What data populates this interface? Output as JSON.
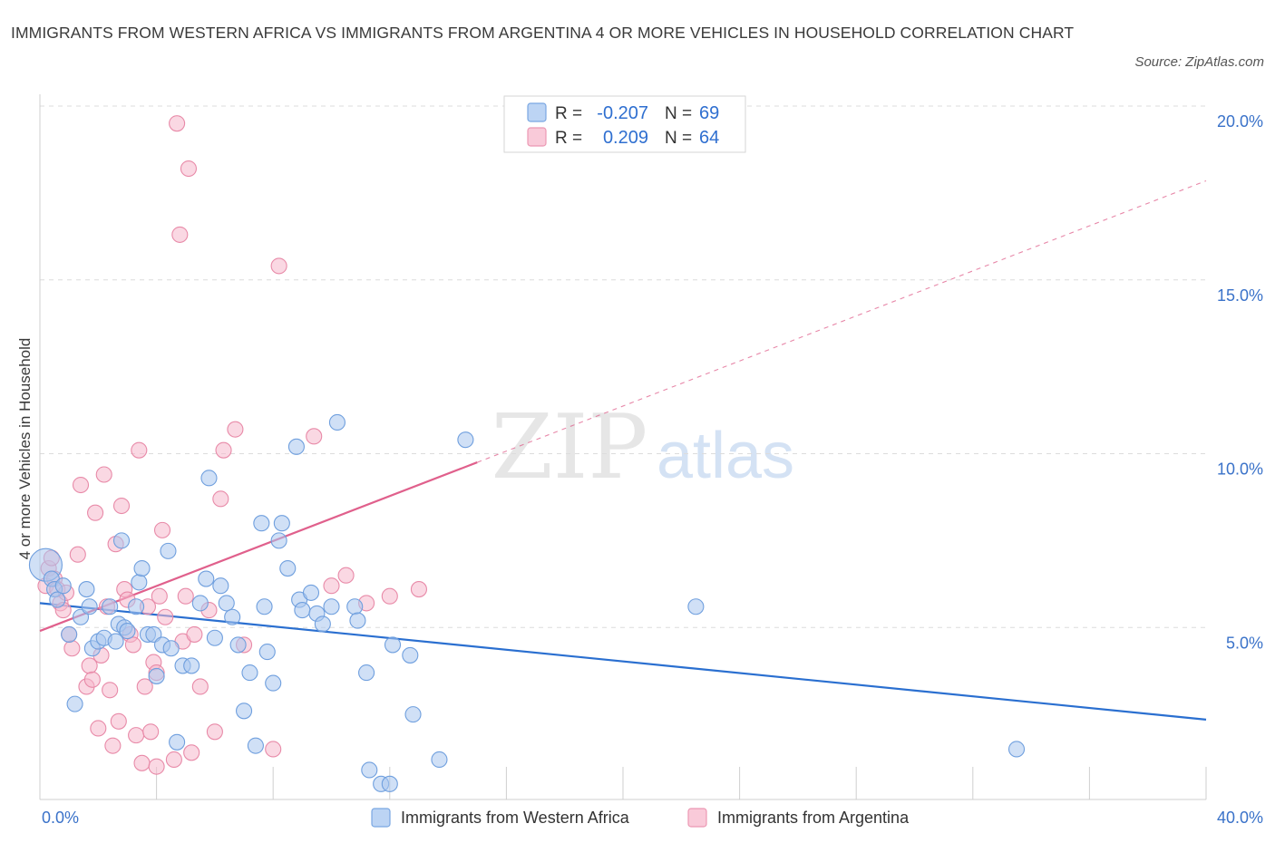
{
  "title": "IMMIGRANTS FROM WESTERN AFRICA VS IMMIGRANTS FROM ARGENTINA 4 OR MORE VEHICLES IN HOUSEHOLD CORRELATION CHART",
  "source": "Source: ZipAtlas.com",
  "watermark": {
    "zip": "ZIP",
    "atlas": "atlas"
  },
  "colors": {
    "blue_fill": "#a9c6ee",
    "blue_stroke": "#6f9fde",
    "blue_line": "#2a6fd0",
    "pink_fill": "#f5b8cc",
    "pink_stroke": "#e88aa8",
    "pink_line": "#e0608c",
    "tick_text": "#3a72c9",
    "grid": "#dcdcdc"
  },
  "legend": {
    "rows": [
      {
        "r_label": "R =",
        "r_value": "-0.207",
        "n_label": "N =",
        "n_value": "69"
      },
      {
        "r_label": "R =",
        "r_value": "0.209",
        "n_label": "N =",
        "n_value": "64"
      }
    ]
  },
  "chart_data": {
    "type": "scatter",
    "title": "IMMIGRANTS FROM WESTERN AFRICA VS IMMIGRANTS FROM ARGENTINA 4 OR MORE VEHICLES IN HOUSEHOLD CORRELATION CHART",
    "xlabel": "",
    "ylabel": "4 or more Vehicles in Household",
    "xlim": [
      0,
      40
    ],
    "ylim": [
      0,
      20
    ],
    "x_tick_labels": [
      "0.0%",
      "40.0%"
    ],
    "y_ticks": [
      5,
      10,
      15,
      20
    ],
    "y_tick_labels": [
      "5.0%",
      "10.0%",
      "15.0%",
      "20.0%"
    ],
    "grid": true,
    "legend_position": "top-center",
    "series": [
      {
        "name": "Immigrants from Western Africa",
        "color": "#a9c6ee",
        "trend": {
          "x0": 0,
          "y0": 5.7,
          "x1": 40,
          "y1": 2.35
        },
        "points": [
          [
            0.2,
            6.8
          ],
          [
            0.4,
            6.4
          ],
          [
            0.5,
            6.1
          ],
          [
            0.6,
            5.8
          ],
          [
            0.8,
            6.2
          ],
          [
            1.0,
            4.8
          ],
          [
            1.2,
            2.8
          ],
          [
            1.4,
            5.3
          ],
          [
            1.6,
            6.1
          ],
          [
            1.7,
            5.6
          ],
          [
            1.8,
            4.4
          ],
          [
            2.0,
            4.6
          ],
          [
            2.2,
            4.7
          ],
          [
            2.4,
            5.6
          ],
          [
            2.6,
            4.6
          ],
          [
            2.7,
            5.1
          ],
          [
            2.8,
            7.5
          ],
          [
            2.9,
            5.0
          ],
          [
            3.0,
            4.9
          ],
          [
            3.3,
            5.6
          ],
          [
            3.4,
            6.3
          ],
          [
            3.5,
            6.7
          ],
          [
            3.7,
            4.8
          ],
          [
            3.9,
            4.8
          ],
          [
            4.0,
            3.6
          ],
          [
            4.2,
            4.5
          ],
          [
            4.4,
            7.2
          ],
          [
            4.5,
            4.4
          ],
          [
            4.7,
            1.7
          ],
          [
            4.9,
            3.9
          ],
          [
            5.2,
            3.9
          ],
          [
            5.5,
            5.7
          ],
          [
            5.7,
            6.4
          ],
          [
            5.8,
            9.3
          ],
          [
            6.0,
            4.7
          ],
          [
            6.2,
            6.2
          ],
          [
            6.4,
            5.7
          ],
          [
            6.6,
            5.3
          ],
          [
            6.8,
            4.5
          ],
          [
            7.0,
            2.6
          ],
          [
            7.2,
            3.7
          ],
          [
            7.4,
            1.6
          ],
          [
            7.6,
            8.0
          ],
          [
            7.7,
            5.6
          ],
          [
            7.8,
            4.3
          ],
          [
            8.0,
            3.4
          ],
          [
            8.2,
            7.5
          ],
          [
            8.3,
            8.0
          ],
          [
            8.5,
            6.7
          ],
          [
            8.8,
            10.2
          ],
          [
            8.9,
            5.8
          ],
          [
            9.0,
            5.5
          ],
          [
            9.3,
            6.0
          ],
          [
            9.5,
            5.4
          ],
          [
            9.7,
            5.1
          ],
          [
            10.0,
            5.6
          ],
          [
            10.2,
            10.9
          ],
          [
            10.8,
            5.6
          ],
          [
            10.9,
            5.2
          ],
          [
            11.2,
            3.7
          ],
          [
            11.3,
            0.9
          ],
          [
            11.7,
            0.5
          ],
          [
            12.0,
            0.5
          ],
          [
            12.1,
            4.5
          ],
          [
            12.7,
            4.2
          ],
          [
            12.8,
            2.5
          ],
          [
            13.7,
            1.2
          ],
          [
            14.6,
            10.4
          ],
          [
            22.5,
            5.6
          ],
          [
            33.5,
            1.5
          ]
        ]
      },
      {
        "name": "Immigrants from Argentina",
        "color": "#f5b8cc",
        "trend": {
          "x0": 0,
          "y0": 4.9,
          "x1": 15.0,
          "y1": 9.75
        },
        "trend_extension": {
          "x0": 15.0,
          "y0": 9.75,
          "x1": 40,
          "y1": 17.85
        },
        "points": [
          [
            0.2,
            6.2
          ],
          [
            0.3,
            6.7
          ],
          [
            0.4,
            7.0
          ],
          [
            0.5,
            6.4
          ],
          [
            0.6,
            6.1
          ],
          [
            0.7,
            5.7
          ],
          [
            0.8,
            5.5
          ],
          [
            0.9,
            6.0
          ],
          [
            1.0,
            4.8
          ],
          [
            1.1,
            4.4
          ],
          [
            1.3,
            7.1
          ],
          [
            1.4,
            9.1
          ],
          [
            1.6,
            3.3
          ],
          [
            1.7,
            3.9
          ],
          [
            1.8,
            3.5
          ],
          [
            1.9,
            8.3
          ],
          [
            2.0,
            2.1
          ],
          [
            2.1,
            4.2
          ],
          [
            2.2,
            9.4
          ],
          [
            2.3,
            5.6
          ],
          [
            2.4,
            3.2
          ],
          [
            2.5,
            1.6
          ],
          [
            2.6,
            7.4
          ],
          [
            2.7,
            2.3
          ],
          [
            2.8,
            8.5
          ],
          [
            2.9,
            6.1
          ],
          [
            3.0,
            5.8
          ],
          [
            3.1,
            4.8
          ],
          [
            3.2,
            4.5
          ],
          [
            3.3,
            1.9
          ],
          [
            3.4,
            10.1
          ],
          [
            3.5,
            1.1
          ],
          [
            3.6,
            3.3
          ],
          [
            3.7,
            5.6
          ],
          [
            3.8,
            2.0
          ],
          [
            3.9,
            4.0
          ],
          [
            4.0,
            3.7
          ],
          [
            4.0,
            1.0
          ],
          [
            4.1,
            5.9
          ],
          [
            4.2,
            7.8
          ],
          [
            4.3,
            5.3
          ],
          [
            4.6,
            1.2
          ],
          [
            4.7,
            19.5
          ],
          [
            4.8,
            16.3
          ],
          [
            4.9,
            4.6
          ],
          [
            5.0,
            5.9
          ],
          [
            5.1,
            18.2
          ],
          [
            5.2,
            1.4
          ],
          [
            5.3,
            4.8
          ],
          [
            5.5,
            3.3
          ],
          [
            5.8,
            5.5
          ],
          [
            6.0,
            2.0
          ],
          [
            6.2,
            8.7
          ],
          [
            6.3,
            10.1
          ],
          [
            6.7,
            10.7
          ],
          [
            7.0,
            4.5
          ],
          [
            8.0,
            1.5
          ],
          [
            8.2,
            15.4
          ],
          [
            9.4,
            10.5
          ],
          [
            10.0,
            6.2
          ],
          [
            10.5,
            6.5
          ],
          [
            11.2,
            5.7
          ],
          [
            12.0,
            5.9
          ],
          [
            13.0,
            6.1
          ]
        ]
      }
    ]
  },
  "bottom_legend": {
    "items": [
      "Immigrants from Western Africa",
      "Immigrants from Argentina"
    ]
  }
}
